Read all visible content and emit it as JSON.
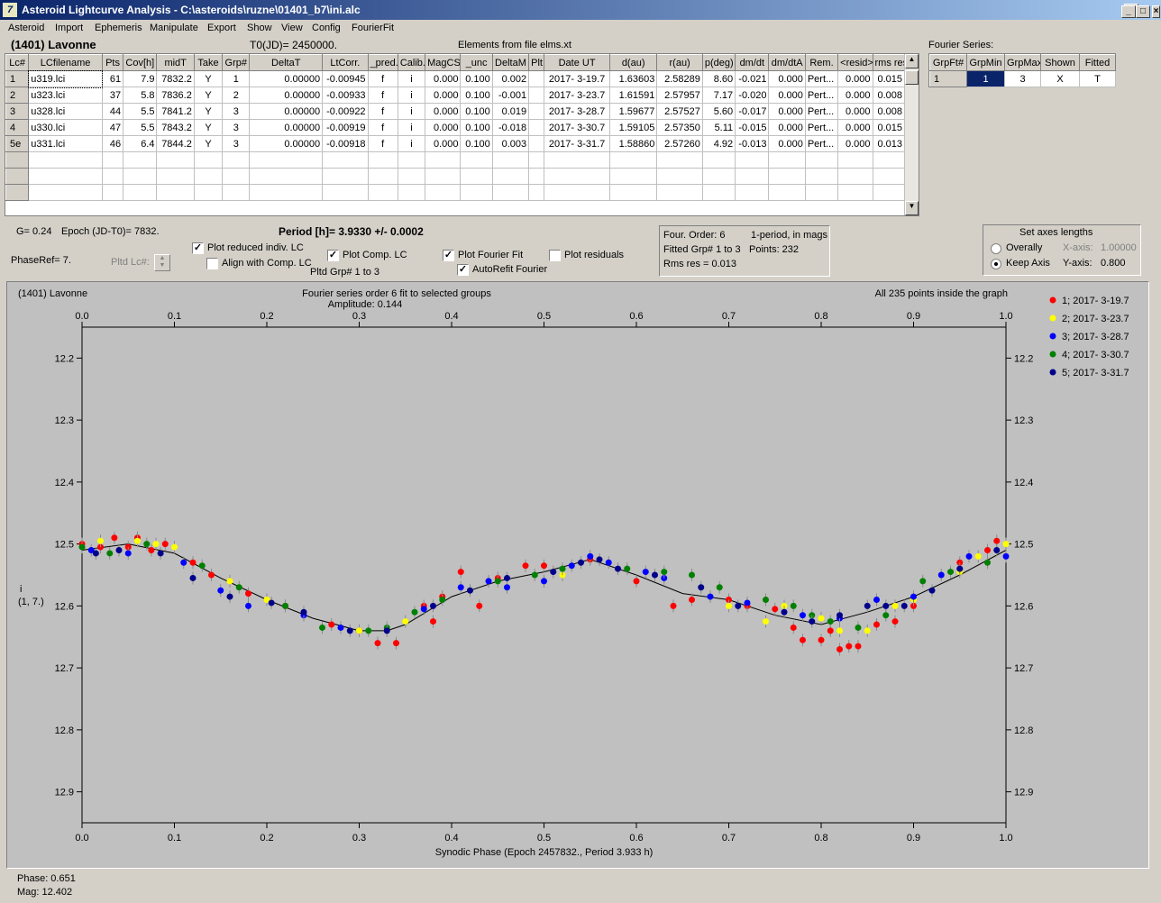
{
  "window": {
    "title": "Asteroid Lightcurve Analysis - C:\\asteroids\\ruzne\\01401_b7\\ini.alc",
    "icon": "app-logo-icon"
  },
  "menu": [
    "Asteroid",
    "Import",
    "Ephemeris",
    "Manipulate",
    "Export",
    "Show",
    "View",
    "Config",
    "FourierFit"
  ],
  "header": {
    "asteroid": "(1401) Lavonne",
    "t0": "T0(JD)= 2450000.",
    "elements": "Elements from file elms.xt"
  },
  "lc_table": {
    "columns": [
      "Lc#",
      "LCfilename",
      "Pts",
      "Cov[h]",
      "midT",
      "Take",
      "Grp#",
      "DeltaT",
      "LtCorr.",
      "_pred.",
      "Calib.",
      "MagCS",
      "_unc",
      "DeltaM",
      "Plt",
      "Date UT",
      "d(au)",
      "r(au)",
      "p(deg)",
      "dm/dt",
      "dm/dtA",
      "Rem.",
      "<resid>",
      "rms res"
    ],
    "rows": [
      [
        "1",
        "u319.lci",
        "61",
        "7.9",
        "7832.2",
        "Y",
        "1",
        "0.00000",
        "-0.00945",
        "f",
        "i",
        "0.000",
        "0.100",
        "0.002",
        "",
        "2017- 3-19.7",
        "1.63603",
        "2.58289",
        "8.60",
        "-0.021",
        "0.000",
        "Pert...",
        "0.000",
        "0.015"
      ],
      [
        "2",
        "u323.lci",
        "37",
        "5.8",
        "7836.2",
        "Y",
        "2",
        "0.00000",
        "-0.00933",
        "f",
        "i",
        "0.000",
        "0.100",
        "-0.001",
        "",
        "2017- 3-23.7",
        "1.61591",
        "2.57957",
        "7.17",
        "-0.020",
        "0.000",
        "Pert...",
        "0.000",
        "0.008"
      ],
      [
        "3",
        "u328.lci",
        "44",
        "5.5",
        "7841.2",
        "Y",
        "3",
        "0.00000",
        "-0.00922",
        "f",
        "i",
        "0.000",
        "0.100",
        "0.019",
        "",
        "2017- 3-28.7",
        "1.59677",
        "2.57527",
        "5.60",
        "-0.017",
        "0.000",
        "Pert...",
        "0.000",
        "0.008"
      ],
      [
        "4",
        "u330.lci",
        "47",
        "5.5",
        "7843.2",
        "Y",
        "3",
        "0.00000",
        "-0.00919",
        "f",
        "i",
        "0.000",
        "0.100",
        "-0.018",
        "",
        "2017- 3-30.7",
        "1.59105",
        "2.57350",
        "5.11",
        "-0.015",
        "0.000",
        "Pert...",
        "0.000",
        "0.015"
      ],
      [
        "5e",
        "u331.lci",
        "46",
        "6.4",
        "7844.2",
        "Y",
        "3",
        "0.00000",
        "-0.00918",
        "f",
        "i",
        "0.000",
        "0.100",
        "0.003",
        "",
        "2017- 3-31.7",
        "1.58860",
        "2.57260",
        "4.92",
        "-0.013",
        "0.000",
        "Pert...",
        "0.000",
        "0.013"
      ]
    ]
  },
  "fourier_series": {
    "label": "Fourier Series:",
    "columns": [
      "GrpFt#",
      "GrpMin",
      "GrpMax",
      "Shown",
      "Fitted"
    ],
    "row": [
      "1",
      "1",
      "3",
      "X",
      "T"
    ]
  },
  "info": {
    "g": "G= 0.24",
    "epoch": "Epoch (JD-T0)= 7832.",
    "period": "Period [h]= 3.9330 +/- 0.0002",
    "phaseref": "PhaseRef= 7.",
    "pltd_lc": "Pltd Lc#:",
    "pltd_grp": "Pltd Grp#  1   to   3",
    "four_order": "Four. Order:  6",
    "one_period": "1-period, in mags",
    "fitted_grp": "Fitted Grp# 1 to 3",
    "points": "Points: 232",
    "rms": "Rms res     = 0.013"
  },
  "checkboxes": {
    "plot_reduced": {
      "label": "Plot reduced indiv. LC",
      "checked": true
    },
    "align_comp": {
      "label": "Align with Comp. LC",
      "checked": false
    },
    "plot_comp": {
      "label": "Plot Comp. LC",
      "checked": true
    },
    "plot_fourier": {
      "label": "Plot Fourier Fit",
      "checked": true
    },
    "autorefit": {
      "label": "AutoRefit Fourier",
      "checked": true
    },
    "plot_residuals": {
      "label": "Plot residuals",
      "checked": false
    }
  },
  "axes_panel": {
    "title": "Set axes lengths",
    "overally": "Overally",
    "keep_axis": "Keep Axis",
    "xaxis_label": "X-axis:",
    "xaxis_value": "1.00000",
    "yaxis_label": "Y-axis:",
    "yaxis_value": "0.800",
    "selected": "Keep Axis"
  },
  "status": {
    "phase": "Phase:  0.651",
    "mag": "Mag:    12.402"
  },
  "chart_data": {
    "type": "scatter",
    "title": "Fourier series order 6 fit to selected groups",
    "subtitle": "Amplitude: 0.144",
    "corner_left": "(1401) Lavonne",
    "corner_right": "All 235 points inside the graph",
    "xlabel": "Synodic Phase (Epoch 2457832., Period 3.933 h)",
    "ylabel": "i\n(1, 7.)",
    "xlim": [
      0.0,
      1.0
    ],
    "ylim": [
      12.15,
      12.95
    ],
    "y_reversed": true,
    "xticks": [
      "0.0",
      "0.1",
      "0.2",
      "0.3",
      "0.4",
      "0.5",
      "0.6",
      "0.7",
      "0.8",
      "0.9",
      "1.0"
    ],
    "yticks": [
      "12.2",
      "12.3",
      "12.4",
      "12.5",
      "12.6",
      "12.7",
      "12.8",
      "12.9"
    ],
    "fit_curve": {
      "x": [
        0.0,
        0.05,
        0.1,
        0.15,
        0.2,
        0.25,
        0.3,
        0.33,
        0.35,
        0.4,
        0.45,
        0.5,
        0.55,
        0.6,
        0.65,
        0.7,
        0.75,
        0.8,
        0.85,
        0.9,
        0.95,
        1.0
      ],
      "y": [
        12.51,
        12.5,
        12.515,
        12.555,
        12.59,
        12.62,
        12.64,
        12.64,
        12.63,
        12.585,
        12.56,
        12.545,
        12.525,
        12.55,
        12.58,
        12.59,
        12.615,
        12.63,
        12.61,
        12.585,
        12.55,
        12.51
      ]
    },
    "series": [
      {
        "name": "1; 2017- 3-19.7",
        "color": "#ff0000",
        "x": [
          0.0,
          0.02,
          0.035,
          0.05,
          0.06,
          0.075,
          0.09,
          0.12,
          0.14,
          0.18,
          0.22,
          0.27,
          0.3,
          0.32,
          0.34,
          0.37,
          0.38,
          0.39,
          0.41,
          0.43,
          0.45,
          0.48,
          0.5,
          0.55,
          0.6,
          0.64,
          0.66,
          0.7,
          0.72,
          0.75,
          0.77,
          0.78,
          0.8,
          0.81,
          0.82,
          0.83,
          0.84,
          0.86,
          0.88,
          0.9,
          0.95,
          0.98,
          0.99
        ],
        "y": [
          12.5,
          12.505,
          12.49,
          12.505,
          12.49,
          12.51,
          12.5,
          12.53,
          12.55,
          12.58,
          12.6,
          12.63,
          12.64,
          12.66,
          12.66,
          12.6,
          12.625,
          12.585,
          12.545,
          12.6,
          12.555,
          12.535,
          12.535,
          12.525,
          12.56,
          12.6,
          12.59,
          12.59,
          12.6,
          12.605,
          12.635,
          12.655,
          12.655,
          12.64,
          12.67,
          12.665,
          12.665,
          12.63,
          12.625,
          12.6,
          12.53,
          12.51,
          12.495
        ]
      },
      {
        "name": "2; 2017- 3-23.7",
        "color": "#ffff00",
        "x": [
          0.02,
          0.06,
          0.08,
          0.1,
          0.16,
          0.2,
          0.3,
          0.35,
          0.52,
          0.7,
          0.74,
          0.76,
          0.8,
          0.82,
          0.85,
          0.88,
          0.9,
          0.95,
          0.97,
          1.0
        ],
        "y": [
          12.495,
          12.495,
          12.5,
          12.505,
          12.56,
          12.59,
          12.64,
          12.625,
          12.55,
          12.6,
          12.625,
          12.6,
          12.62,
          12.64,
          12.64,
          12.6,
          12.59,
          12.545,
          12.52,
          12.5
        ]
      },
      {
        "name": "3; 2017- 3-28.7",
        "color": "#0000ff",
        "x": [
          0.01,
          0.05,
          0.11,
          0.15,
          0.18,
          0.24,
          0.28,
          0.37,
          0.41,
          0.44,
          0.46,
          0.5,
          0.53,
          0.55,
          0.57,
          0.61,
          0.63,
          0.68,
          0.72,
          0.78,
          0.82,
          0.86,
          0.9,
          0.93,
          0.96,
          1.0
        ],
        "y": [
          12.51,
          12.515,
          12.53,
          12.575,
          12.6,
          12.615,
          12.635,
          12.605,
          12.57,
          12.56,
          12.57,
          12.56,
          12.535,
          12.52,
          12.53,
          12.545,
          12.555,
          12.585,
          12.595,
          12.615,
          12.62,
          12.59,
          12.585,
          12.55,
          12.52,
          12.52
        ]
      },
      {
        "name": "4; 2017- 3-30.7",
        "color": "#008000",
        "x": [
          0.0,
          0.03,
          0.07,
          0.13,
          0.17,
          0.22,
          0.26,
          0.31,
          0.33,
          0.36,
          0.39,
          0.45,
          0.49,
          0.52,
          0.59,
          0.63,
          0.66,
          0.69,
          0.74,
          0.77,
          0.79,
          0.81,
          0.84,
          0.87,
          0.91,
          0.94,
          0.98
        ],
        "y": [
          12.505,
          12.515,
          12.5,
          12.535,
          12.57,
          12.6,
          12.635,
          12.64,
          12.635,
          12.61,
          12.59,
          12.56,
          12.55,
          12.54,
          12.54,
          12.545,
          12.55,
          12.57,
          12.59,
          12.6,
          12.615,
          12.625,
          12.635,
          12.615,
          12.56,
          12.545,
          12.53
        ]
      },
      {
        "name": "5; 2017- 3-31.7",
        "color": "#00008b",
        "x": [
          0.015,
          0.04,
          0.085,
          0.12,
          0.16,
          0.205,
          0.24,
          0.29,
          0.33,
          0.38,
          0.42,
          0.46,
          0.51,
          0.54,
          0.56,
          0.58,
          0.62,
          0.67,
          0.71,
          0.76,
          0.79,
          0.82,
          0.85,
          0.87,
          0.89,
          0.92,
          0.95,
          0.99
        ],
        "y": [
          12.515,
          12.51,
          12.515,
          12.555,
          12.585,
          12.595,
          12.61,
          12.64,
          12.64,
          12.6,
          12.575,
          12.555,
          12.545,
          12.53,
          12.525,
          12.54,
          12.55,
          12.57,
          12.6,
          12.61,
          12.625,
          12.615,
          12.6,
          12.6,
          12.6,
          12.575,
          12.54,
          12.51
        ]
      }
    ]
  }
}
